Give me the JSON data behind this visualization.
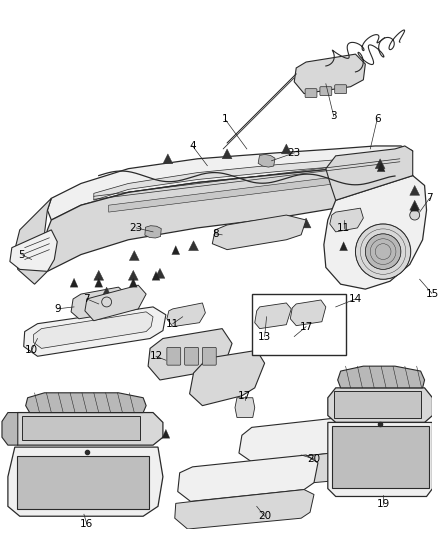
{
  "bg_color": "#ffffff",
  "fig_width": 4.38,
  "fig_height": 5.33,
  "dpi": 100,
  "line_color": "#2a2a2a",
  "fill_light": "#f0f0f0",
  "fill_mid": "#d8d8d8",
  "fill_dark": "#b8b8b8"
}
